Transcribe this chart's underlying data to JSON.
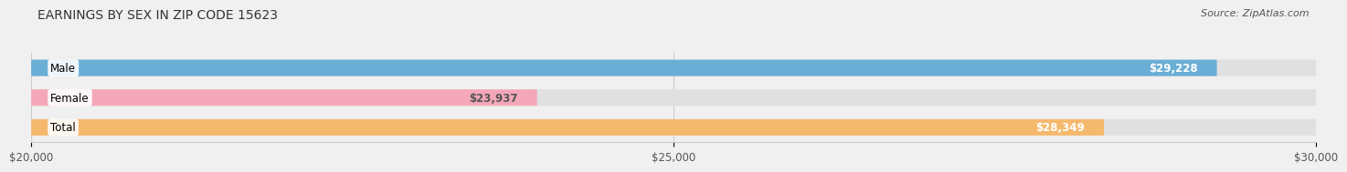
{
  "title": "EARNINGS BY SEX IN ZIP CODE 15623",
  "source": "Source: ZipAtlas.com",
  "categories": [
    "Male",
    "Female",
    "Total"
  ],
  "values": [
    29228,
    23937,
    28349
  ],
  "labels": [
    "$29,228",
    "$23,937",
    "$28,349"
  ],
  "bar_colors": [
    "#6aaed6",
    "#f4a7b9",
    "#f5b96e"
  ],
  "label_colors": [
    "#ffffff",
    "#555555",
    "#ffffff"
  ],
  "x_min": 20000,
  "x_max": 30000,
  "x_ticks": [
    20000,
    25000,
    30000
  ],
  "x_tick_labels": [
    "$20,000",
    "$25,000",
    "$30,000"
  ],
  "background_color": "#f0f0f0",
  "bar_background": "#e0e0e0",
  "title_fontsize": 10,
  "source_fontsize": 8,
  "label_fontsize": 8.5,
  "tick_fontsize": 8.5,
  "category_fontsize": 8.5
}
